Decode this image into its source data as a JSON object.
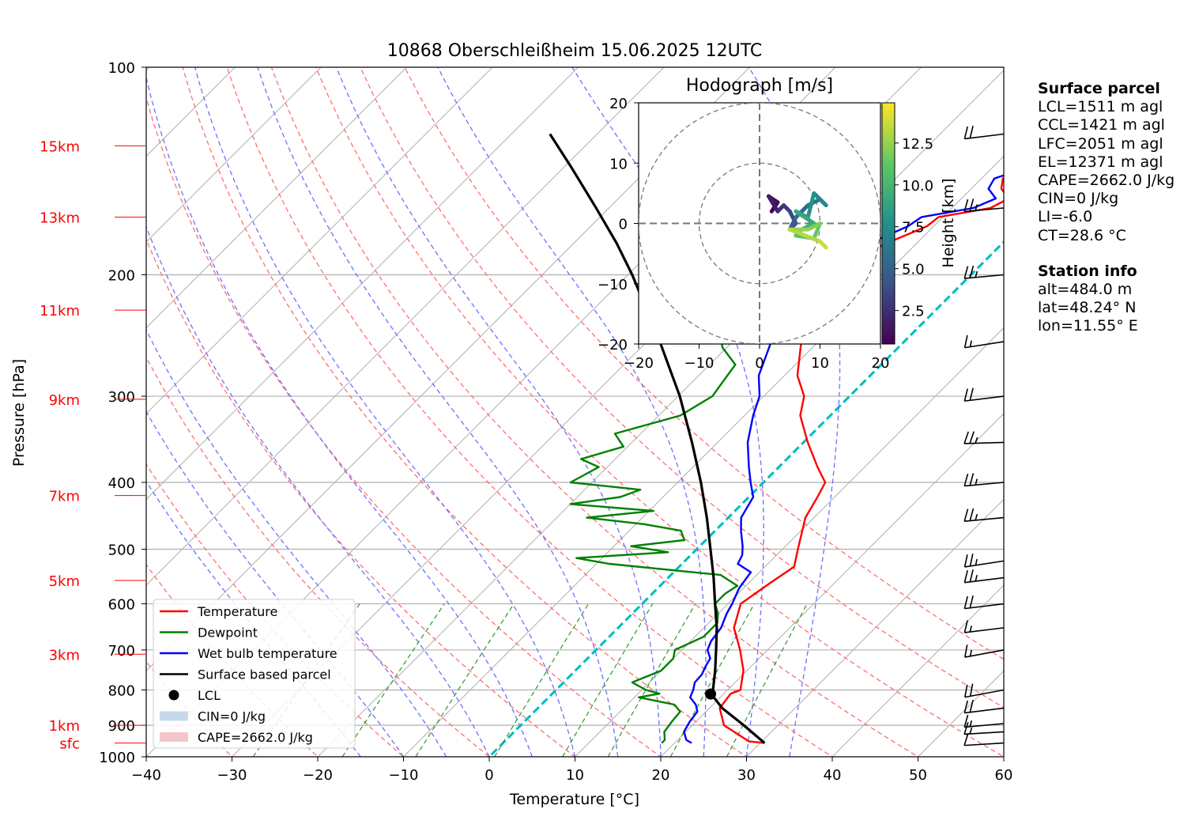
{
  "title": "10868 Oberschleißheim 15.06.2025 12UTC",
  "colors": {
    "temperature": "#ff0000",
    "dewpoint": "#008000",
    "wetbulb": "#0000ff",
    "parcel": "#000000",
    "cape_fill": "#f4c6c9",
    "cin_fill": "#c6d9ec",
    "dry_adiabat": "#ff6f6f",
    "moist_adiabat": "#6f6fff",
    "mixing_ratio": "#2a9a2a",
    "zero_isotherm": "#00bcbc",
    "isotherm": "#b0b0b0"
  },
  "info": {
    "surface_header": "Surface parcel",
    "surface_lines": [
      "LCL=1511 m agl",
      "CCL=1421 m agl",
      "LFC=2051 m agl",
      "EL=12371 m agl",
      "CAPE=2662.0 J/kg",
      "CIN=0 J/kg",
      "LI=-6.0",
      "CT=28.6 °C"
    ],
    "station_header": "Station info",
    "station_lines": [
      "alt=484.0 m",
      "lat=48.24° N",
      "lon=11.55° E"
    ]
  },
  "chart_data": [
    {
      "type": "line",
      "name": "skew-t",
      "title": "10868 Oberschleißheim 15.06.2025 12UTC",
      "xlabel": "Temperature [°C]",
      "ylabel": "Pressure [hPa]",
      "xlim": [
        -40,
        60
      ],
      "ylim": [
        1000,
        100
      ],
      "yscale": "log",
      "grid": true,
      "x_ticks": [
        -40,
        -30,
        -20,
        -10,
        0,
        10,
        20,
        30,
        40,
        50,
        60
      ],
      "x_tick_labels": [
        "−40",
        "−30",
        "−20",
        "−10",
        "0",
        "10",
        "20",
        "30",
        "40",
        "50",
        "60"
      ],
      "y_ticks": [
        100,
        200,
        300,
        400,
        500,
        600,
        700,
        800,
        900,
        1000
      ],
      "y_tick_labels": [
        "100",
        "200",
        "300",
        "400",
        "500",
        "600",
        "700",
        "800",
        "900",
        "1000"
      ],
      "height_ticks": [
        {
          "label": "15km",
          "p": 130
        },
        {
          "label": "13km",
          "p": 165
        },
        {
          "label": "11km",
          "p": 225
        },
        {
          "label": "9km",
          "p": 303
        },
        {
          "label": "7km",
          "p": 418
        },
        {
          "label": "5km",
          "p": 555
        },
        {
          "label": "3km",
          "p": 710
        },
        {
          "label": "1km",
          "p": 900
        },
        {
          "label": "sfc",
          "p": 955
        }
      ],
      "legend_position": "lower-left",
      "legend": [
        "Temperature",
        "Dewpoint",
        "Wet bulb temperature",
        "Surface based parcel",
        "LCL",
        "CIN=0 J/kg",
        "CAPE=2662.0 J/kg"
      ],
      "series": [
        {
          "name": "Temperature",
          "points": [
            [
              955,
              30.5
            ],
            [
              950,
              28.5
            ],
            [
              900,
              23.7
            ],
            [
              850,
              21.2
            ],
            [
              810,
              20.8
            ],
            [
              800,
              21.5
            ],
            [
              750,
              19.6
            ],
            [
              700,
              16.8
            ],
            [
              650,
              13.5
            ],
            [
              600,
              11.5
            ],
            [
              560,
              12.5
            ],
            [
              530,
              13.4
            ],
            [
              500,
              11.8
            ],
            [
              450,
              9.0
            ],
            [
              420,
              8.0
            ],
            [
              400,
              7.2
            ],
            [
              380,
              4.5
            ],
            [
              350,
              0.5
            ],
            [
              320,
              -3.5
            ],
            [
              300,
              -5.3
            ],
            [
              280,
              -8.5
            ],
            [
              250,
              -12.0
            ],
            [
              220,
              -14.5
            ],
            [
              200,
              -15.7
            ],
            [
              190,
              -15.5
            ],
            [
              180,
              -13.5
            ],
            [
              170,
              -10.8
            ],
            [
              165,
              -10.5
            ],
            [
              160,
              -5.5
            ],
            [
              155,
              -4.5
            ],
            [
              150,
              -6.5
            ],
            [
              145,
              -7.5
            ],
            [
              140,
              -5.0
            ],
            [
              135,
              -4.5
            ],
            [
              130,
              -6.5
            ],
            [
              128,
              -2.0
            ],
            [
              125,
              1.0
            ],
            [
              123,
              3.8
            ]
          ]
        },
        {
          "name": "Dewpoint",
          "points": [
            [
              955,
              18.5
            ],
            [
              945,
              18.5
            ],
            [
              920,
              17.5
            ],
            [
              890,
              17.2
            ],
            [
              860,
              17.0
            ],
            [
              840,
              15.5
            ],
            [
              820,
              10.5
            ],
            [
              810,
              12.5
            ],
            [
              800,
              10.5
            ],
            [
              780,
              8.0
            ],
            [
              750,
              10.0
            ],
            [
              720,
              10.0
            ],
            [
              700,
              9.2
            ],
            [
              670,
              11.0
            ],
            [
              640,
              11.0
            ],
            [
              620,
              10.0
            ],
            [
              600,
              8.5
            ],
            [
              580,
              8.5
            ],
            [
              565,
              9.0
            ],
            [
              545,
              5.8
            ],
            [
              525,
              -8.5
            ],
            [
              515,
              -13.0
            ],
            [
              505,
              -3.0
            ],
            [
              495,
              -8.0
            ],
            [
              485,
              -2.5
            ],
            [
              470,
              -4.0
            ],
            [
              460,
              -9.0
            ],
            [
              450,
              -16.5
            ],
            [
              440,
              -9.5
            ],
            [
              430,
              -20.0
            ],
            [
              420,
              -15.0
            ],
            [
              410,
              -13.5
            ],
            [
              400,
              -22.5
            ],
            [
              380,
              -21.0
            ],
            [
              370,
              -24.0
            ],
            [
              355,
              -20.5
            ],
            [
              340,
              -23.0
            ],
            [
              320,
              -17.5
            ],
            [
              300,
              -16.0
            ],
            [
              285,
              -16.5
            ],
            [
              270,
              -17.0
            ],
            [
              255,
              -20.5
            ],
            [
              240,
              -23.0
            ],
            [
              225,
              -24.0
            ],
            [
              210,
              -21.5
            ],
            [
              200,
              -23.0
            ],
            [
              190,
              -23.0
            ],
            [
              180,
              -24.0
            ],
            [
              170,
              -28.0
            ],
            [
              160,
              -32.0
            ],
            [
              150,
              -31.0
            ],
            [
              140,
              -30.5
            ],
            [
              130,
              -29.0
            ],
            [
              125,
              -28.0
            ]
          ]
        },
        {
          "name": "Wet bulb temperature",
          "points": [
            [
              955,
              22.0
            ],
            [
              945,
              21.0
            ],
            [
              920,
              19.8
            ],
            [
              890,
              19.3
            ],
            [
              860,
              19.0
            ],
            [
              840,
              18.0
            ],
            [
              820,
              16.5
            ],
            [
              800,
              16.0
            ],
            [
              780,
              15.3
            ],
            [
              760,
              15.2
            ],
            [
              740,
              14.7
            ],
            [
              720,
              14.3
            ],
            [
              700,
              13.0
            ],
            [
              680,
              12.4
            ],
            [
              650,
              12.0
            ],
            [
              620,
              11.0
            ],
            [
              600,
              10.5
            ],
            [
              570,
              9.5
            ],
            [
              540,
              9.0
            ],
            [
              525,
              6.5
            ],
            [
              510,
              6.0
            ],
            [
              495,
              5.0
            ],
            [
              470,
              3.0
            ],
            [
              450,
              1.5
            ],
            [
              420,
              0.5
            ],
            [
              400,
              -1.5
            ],
            [
              380,
              -3.5
            ],
            [
              350,
              -6.5
            ],
            [
              320,
              -9.0
            ],
            [
              300,
              -10.5
            ],
            [
              280,
              -13.0
            ],
            [
              250,
              -15.5
            ],
            [
              220,
              -17.5
            ],
            [
              200,
              -18.0
            ],
            [
              190,
              -17.5
            ],
            [
              180,
              -15.5
            ],
            [
              170,
              -13.0
            ],
            [
              165,
              -12.5
            ],
            [
              160,
              -7.5
            ],
            [
              155,
              -6.0
            ],
            [
              150,
              -8.0
            ],
            [
              145,
              -8.5
            ],
            [
              140,
              -6.0
            ],
            [
              135,
              -5.0
            ],
            [
              130,
              -7.5
            ],
            [
              128,
              -3.0
            ],
            [
              125,
              0.0
            ],
            [
              123,
              3.5
            ]
          ]
        },
        {
          "name": "Surface based parcel",
          "points": [
            [
              955,
              30.5
            ],
            [
              900,
              26.0
            ],
            [
              850,
              21.5
            ],
            [
              810,
              18.5
            ],
            [
              800,
              18.3
            ],
            [
              750,
              16.3
            ],
            [
              700,
              14.0
            ],
            [
              650,
              11.5
            ],
            [
              600,
              8.5
            ],
            [
              550,
              5.3
            ],
            [
              500,
              1.6
            ],
            [
              450,
              -2.5
            ],
            [
              400,
              -7.3
            ],
            [
              350,
              -13.0
            ],
            [
              300,
              -19.8
            ],
            [
              250,
              -28.5
            ],
            [
              200,
              -39.5
            ],
            [
              180,
              -45.0
            ],
            [
              160,
              -51.5
            ],
            [
              140,
              -59.0
            ],
            [
              125,
              -65.5
            ]
          ]
        }
      ],
      "lcl": {
        "p": 811,
        "t": 18.5
      },
      "background_lines": {
        "isotherms_step": 10,
        "dry_adiabats_theta_c": [
          -40,
          -30,
          -20,
          -10,
          0,
          10,
          20,
          30,
          40,
          50,
          60,
          70,
          80
        ],
        "moist_adiabats_c": [
          -15,
          -10,
          -5,
          0,
          5,
          10,
          15,
          20,
          25,
          30,
          35
        ],
        "mixing_ratios_gkg": [
          0.4,
          1,
          2,
          4,
          7,
          10,
          16,
          24
        ]
      }
    },
    {
      "type": "scatter",
      "name": "hodograph",
      "title": "Hodograph [m/s]",
      "xlim": [
        -20,
        20
      ],
      "ylim": [
        -20,
        20
      ],
      "x_ticks": [
        -20,
        -10,
        0,
        10,
        20
      ],
      "y_ticks": [
        -20,
        -10,
        0,
        10,
        20
      ],
      "x_tick_labels": [
        "−20",
        "−10",
        "0",
        "10",
        "20"
      ],
      "y_tick_labels": [
        "−20",
        "−10",
        "0",
        "10",
        "20"
      ],
      "rings": [
        10,
        20
      ],
      "colorbar_label": "Height [km]",
      "colorbar_range": [
        0.5,
        14.9
      ],
      "colorbar_ticks": [
        "2.5",
        "5.0",
        "7.5",
        "10.0",
        "12.5"
      ],
      "points": [
        [
          2,
          2,
          0.6
        ],
        [
          3,
          3.5,
          1.2
        ],
        [
          1.5,
          4.5,
          1.8
        ],
        [
          3,
          2,
          2.4
        ],
        [
          4,
          3,
          3.0
        ],
        [
          5,
          2,
          3.6
        ],
        [
          6,
          0,
          4.2
        ],
        [
          5,
          -1,
          4.8
        ],
        [
          6,
          1,
          5.4
        ],
        [
          8,
          3,
          6.0
        ],
        [
          10,
          4,
          6.6
        ],
        [
          11,
          3,
          7.2
        ],
        [
          9,
          5,
          7.8
        ],
        [
          8,
          1,
          8.4
        ],
        [
          6,
          2,
          9.0
        ],
        [
          9,
          0,
          9.6
        ],
        [
          7,
          -1,
          10.2
        ],
        [
          6,
          -2,
          10.8
        ],
        [
          9,
          -2.5,
          11.4
        ],
        [
          10,
          0,
          12.0
        ],
        [
          8,
          -1,
          12.6
        ],
        [
          5,
          -1,
          13.2
        ],
        [
          10,
          -3,
          13.8
        ],
        [
          11,
          -4,
          14.4
        ]
      ]
    },
    {
      "type": "wind_barbs",
      "name": "wind-profile",
      "barbs": [
        {
          "p": 955,
          "speed_kt": 10,
          "dir": 260
        },
        {
          "p": 920,
          "speed_kt": 15,
          "dir": 260
        },
        {
          "p": 895,
          "speed_kt": 15,
          "dir": 255
        },
        {
          "p": 850,
          "speed_kt": 20,
          "dir": 250
        },
        {
          "p": 800,
          "speed_kt": 20,
          "dir": 240
        },
        {
          "p": 700,
          "speed_kt": 15,
          "dir": 240
        },
        {
          "p": 650,
          "speed_kt": 15,
          "dir": 250
        },
        {
          "p": 600,
          "speed_kt": 20,
          "dir": 250
        },
        {
          "p": 550,
          "speed_kt": 25,
          "dir": 250
        },
        {
          "p": 520,
          "speed_kt": 25,
          "dir": 245
        },
        {
          "p": 450,
          "speed_kt": 25,
          "dir": 255
        },
        {
          "p": 400,
          "speed_kt": 25,
          "dir": 255
        },
        {
          "p": 350,
          "speed_kt": 25,
          "dir": 265
        },
        {
          "p": 300,
          "speed_kt": 20,
          "dir": 250
        },
        {
          "p": 250,
          "speed_kt": 15,
          "dir": 245
        },
        {
          "p": 200,
          "speed_kt": 25,
          "dir": 255
        },
        {
          "p": 160,
          "speed_kt": 25,
          "dir": 255
        },
        {
          "p": 125,
          "speed_kt": 20,
          "dir": 250
        }
      ]
    }
  ]
}
